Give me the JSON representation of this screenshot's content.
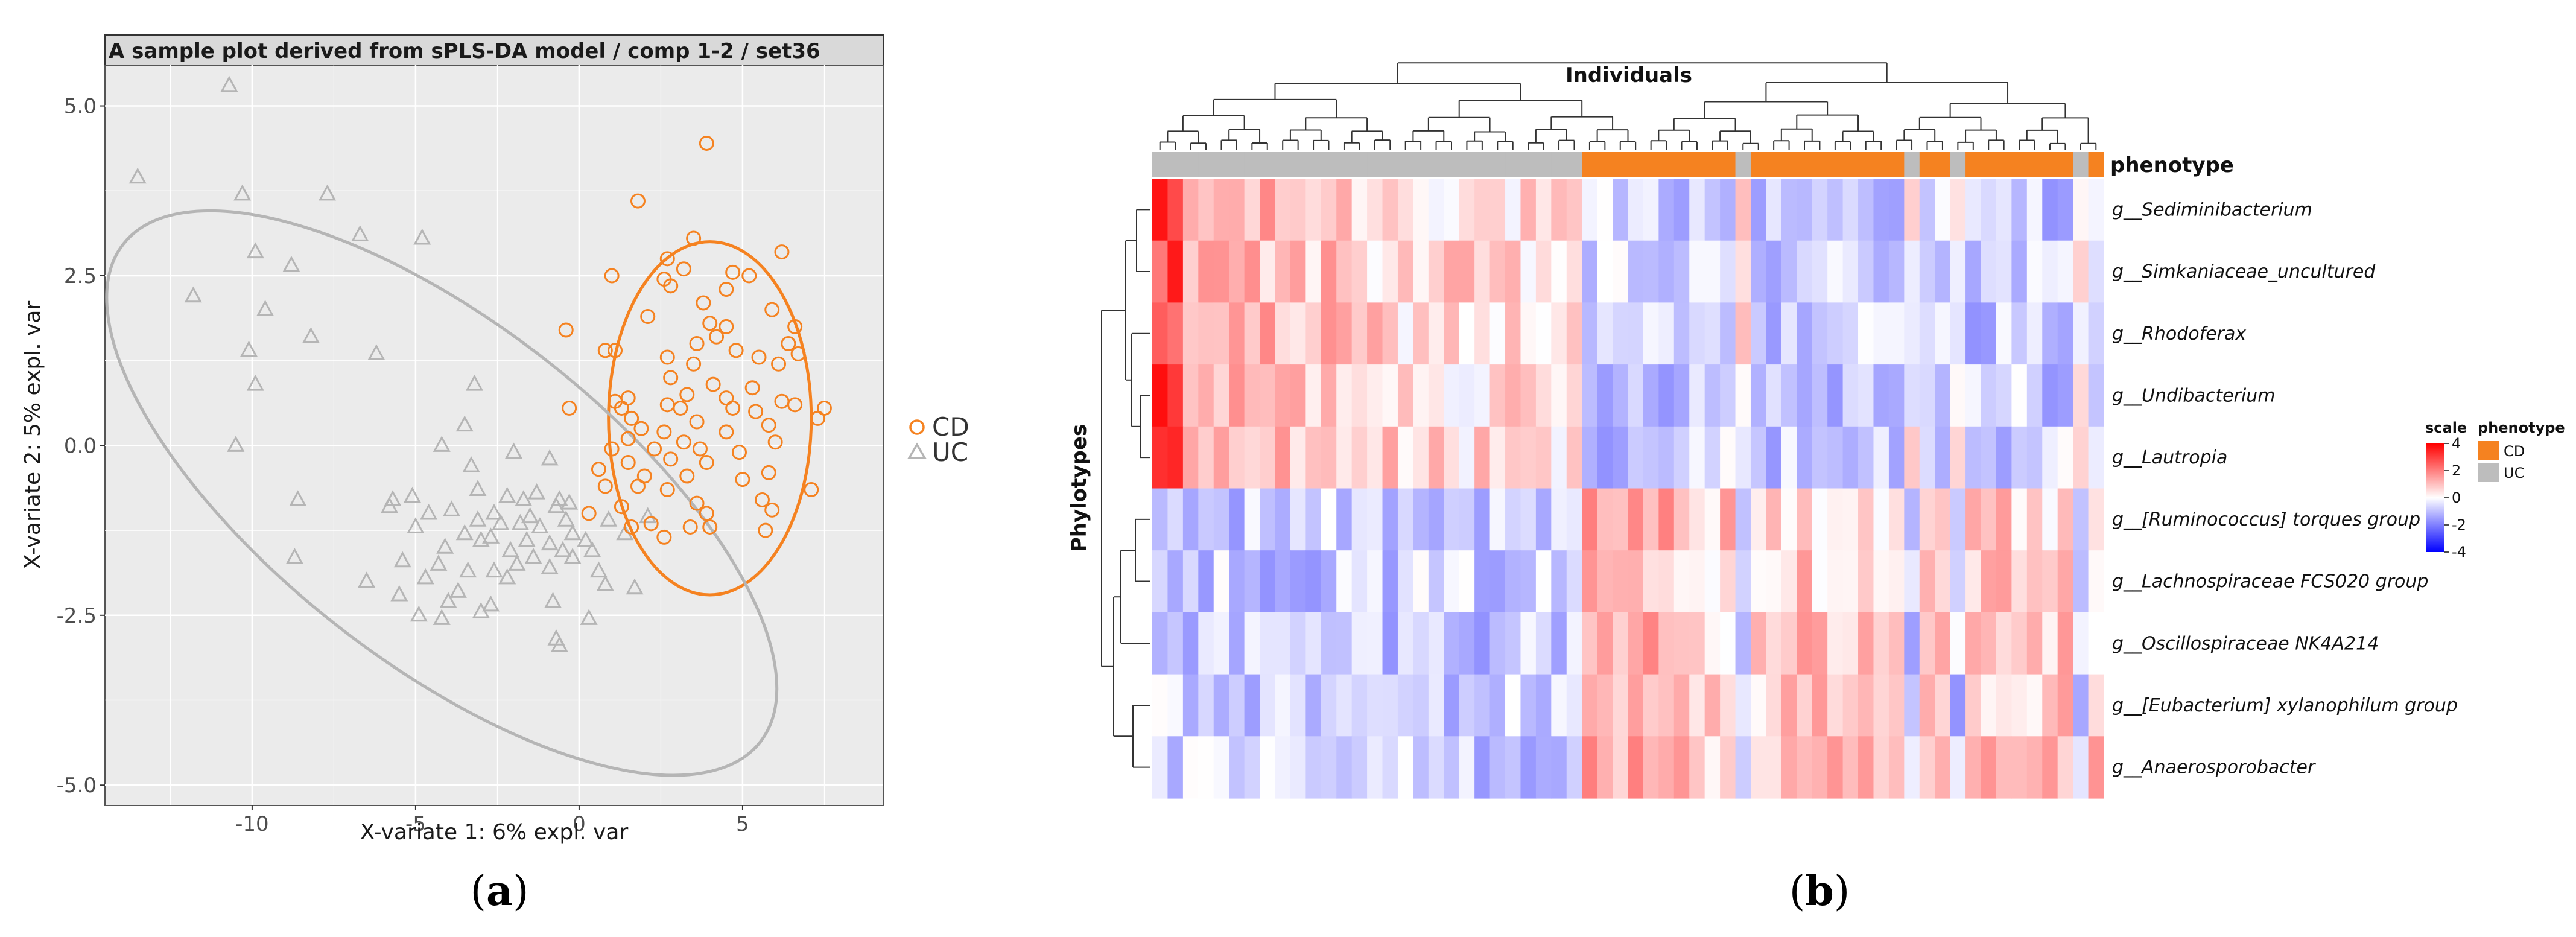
{
  "colors": {
    "cd": "#f58220",
    "uc": "#b5b5b5",
    "panel_bg": "#ebebeb",
    "grid": "#ffffff",
    "hm_low": "#0000ff",
    "hm_mid": "#ffffff",
    "hm_high": "#ff0000"
  },
  "captions": {
    "a_open": "(",
    "a_letter": "a",
    "a_close": ")",
    "b_open": "(",
    "b_letter": "b",
    "b_close": ")"
  },
  "chart_data": [
    {
      "type": "scatter",
      "title": "A sample plot derived from sPLS-DA model / comp 1-2 / set36",
      "xlabel": "X-variate 1: 6% expl. var",
      "ylabel": "X-variate 2: 5% expl. var",
      "xlim": [
        -14.5,
        9.3
      ],
      "ylim": [
        -5.3,
        5.6
      ],
      "xticks": [
        -10,
        -5,
        0,
        5
      ],
      "xtick_labels": [
        "-10",
        "-5",
        "0",
        "5"
      ],
      "yticks": [
        5,
        2.5,
        0,
        -2.5,
        -5
      ],
      "ytick_labels": [
        "5.0",
        "2.5",
        "0.0",
        "-2.5",
        "-5.0"
      ],
      "legend": {
        "position": "right",
        "items": [
          "CD",
          "UC"
        ]
      },
      "ellipses": [
        {
          "group": "CD",
          "center": [
            4.0,
            0.4
          ],
          "semi_axes": [
            3.1,
            2.6
          ],
          "rotation_deg": 0
        },
        {
          "group": "UC",
          "center": [
            -4.2,
            -0.7
          ],
          "semi_axes": [
            10.4,
            3.6
          ],
          "rotation_deg": -23
        }
      ],
      "series": [
        {
          "name": "CD",
          "marker": "circle",
          "points": [
            [
              3.9,
              4.45
            ],
            [
              1.8,
              3.6
            ],
            [
              3.5,
              3.05
            ],
            [
              6.2,
              2.85
            ],
            [
              2.7,
              2.75
            ],
            [
              3.2,
              2.6
            ],
            [
              4.7,
              2.55
            ],
            [
              5.2,
              2.5
            ],
            [
              1.0,
              2.5
            ],
            [
              2.6,
              2.45
            ],
            [
              2.8,
              2.35
            ],
            [
              4.5,
              2.3
            ],
            [
              3.8,
              2.1
            ],
            [
              5.9,
              2.0
            ],
            [
              2.1,
              1.9
            ],
            [
              4.0,
              1.8
            ],
            [
              4.5,
              1.75
            ],
            [
              -0.4,
              1.7
            ],
            [
              6.6,
              1.75
            ],
            [
              4.2,
              1.6
            ],
            [
              3.6,
              1.5
            ],
            [
              6.4,
              1.5
            ],
            [
              0.8,
              1.4
            ],
            [
              1.1,
              1.4
            ],
            [
              4.8,
              1.4
            ],
            [
              2.7,
              1.3
            ],
            [
              5.5,
              1.3
            ],
            [
              6.7,
              1.35
            ],
            [
              3.5,
              1.2
            ],
            [
              6.1,
              1.2
            ],
            [
              2.8,
              1.0
            ],
            [
              4.1,
              0.9
            ],
            [
              5.3,
              0.85
            ],
            [
              1.5,
              0.7
            ],
            [
              3.3,
              0.75
            ],
            [
              4.5,
              0.7
            ],
            [
              6.2,
              0.65
            ],
            [
              1.1,
              0.65
            ],
            [
              1.3,
              0.55
            ],
            [
              -0.3,
              0.55
            ],
            [
              2.7,
              0.6
            ],
            [
              3.1,
              0.55
            ],
            [
              4.7,
              0.55
            ],
            [
              5.4,
              0.5
            ],
            [
              6.6,
              0.6
            ],
            [
              7.5,
              0.55
            ],
            [
              7.3,
              0.4
            ],
            [
              1.6,
              0.4
            ],
            [
              3.6,
              0.35
            ],
            [
              1.9,
              0.25
            ],
            [
              2.6,
              0.2
            ],
            [
              4.5,
              0.2
            ],
            [
              5.8,
              0.3
            ],
            [
              1.5,
              0.1
            ],
            [
              3.2,
              0.05
            ],
            [
              6.0,
              0.05
            ],
            [
              1.0,
              -0.05
            ],
            [
              2.3,
              -0.05
            ],
            [
              3.7,
              -0.05
            ],
            [
              4.9,
              -0.1
            ],
            [
              1.5,
              -0.25
            ],
            [
              2.8,
              -0.2
            ],
            [
              3.9,
              -0.25
            ],
            [
              5.8,
              -0.4
            ],
            [
              0.6,
              -0.35
            ],
            [
              2.0,
              -0.45
            ],
            [
              3.3,
              -0.45
            ],
            [
              5.0,
              -0.5
            ],
            [
              7.1,
              -0.65
            ],
            [
              0.8,
              -0.6
            ],
            [
              1.8,
              -0.6
            ],
            [
              2.7,
              -0.65
            ],
            [
              3.6,
              -0.85
            ],
            [
              5.6,
              -0.8
            ],
            [
              1.3,
              -0.9
            ],
            [
              0.3,
              -1.0
            ],
            [
              3.9,
              -1.0
            ],
            [
              5.9,
              -0.95
            ],
            [
              2.2,
              -1.15
            ],
            [
              3.4,
              -1.2
            ],
            [
              1.6,
              -1.2
            ],
            [
              4.0,
              -1.2
            ],
            [
              5.7,
              -1.25
            ],
            [
              2.6,
              -1.35
            ]
          ]
        },
        {
          "name": "UC",
          "marker": "triangle",
          "points": [
            [
              -10.7,
              5.3
            ],
            [
              -13.5,
              3.95
            ],
            [
              -10.3,
              3.7
            ],
            [
              -7.7,
              3.7
            ],
            [
              -6.7,
              3.1
            ],
            [
              -4.8,
              3.05
            ],
            [
              -9.9,
              2.85
            ],
            [
              -8.8,
              2.65
            ],
            [
              -11.8,
              2.2
            ],
            [
              -9.6,
              2.0
            ],
            [
              -8.2,
              1.6
            ],
            [
              -10.1,
              1.4
            ],
            [
              -6.2,
              1.35
            ],
            [
              -9.9,
              0.9
            ],
            [
              -3.2,
              0.9
            ],
            [
              -3.5,
              0.3
            ],
            [
              -4.2,
              0.0
            ],
            [
              -10.5,
              0.0
            ],
            [
              -2.0,
              -0.1
            ],
            [
              -0.9,
              -0.2
            ],
            [
              -3.3,
              -0.3
            ],
            [
              -5.1,
              -0.75
            ],
            [
              -5.7,
              -0.8
            ],
            [
              -8.6,
              -0.8
            ],
            [
              -5.8,
              -0.9
            ],
            [
              -3.1,
              -0.65
            ],
            [
              -2.2,
              -0.75
            ],
            [
              -1.3,
              -0.7
            ],
            [
              -0.6,
              -0.8
            ],
            [
              -0.3,
              -0.85
            ],
            [
              -1.7,
              -0.8
            ],
            [
              -4.6,
              -1.0
            ],
            [
              -3.9,
              -0.95
            ],
            [
              -2.6,
              -1.0
            ],
            [
              -1.5,
              -1.05
            ],
            [
              -0.7,
              -0.9
            ],
            [
              -0.4,
              -1.1
            ],
            [
              -3.1,
              -1.1
            ],
            [
              -2.4,
              -1.15
            ],
            [
              -1.8,
              -1.15
            ],
            [
              -1.2,
              -1.2
            ],
            [
              -0.2,
              -1.3
            ],
            [
              0.2,
              -1.4
            ],
            [
              -5.0,
              -1.2
            ],
            [
              -3.5,
              -1.3
            ],
            [
              -2.7,
              -1.35
            ],
            [
              -1.6,
              -1.4
            ],
            [
              -0.9,
              -1.45
            ],
            [
              -0.5,
              -1.55
            ],
            [
              -4.1,
              -1.5
            ],
            [
              -3.0,
              -1.4
            ],
            [
              -2.1,
              -1.55
            ],
            [
              -1.4,
              -1.65
            ],
            [
              -0.2,
              -1.65
            ],
            [
              0.4,
              -1.55
            ],
            [
              -5.4,
              -1.7
            ],
            [
              -4.3,
              -1.75
            ],
            [
              -8.7,
              -1.65
            ],
            [
              -3.4,
              -1.85
            ],
            [
              -2.6,
              -1.85
            ],
            [
              -1.9,
              -1.75
            ],
            [
              -0.9,
              -1.8
            ],
            [
              0.6,
              -1.85
            ],
            [
              -6.5,
              -2.0
            ],
            [
              -4.7,
              -1.95
            ],
            [
              -3.7,
              -2.15
            ],
            [
              -2.2,
              -1.95
            ],
            [
              0.8,
              -2.05
            ],
            [
              -5.5,
              -2.2
            ],
            [
              -4.0,
              -2.3
            ],
            [
              -0.8,
              -2.3
            ],
            [
              -3.0,
              -2.45
            ],
            [
              -2.7,
              -2.35
            ],
            [
              -4.9,
              -2.5
            ],
            [
              -4.2,
              -2.55
            ],
            [
              0.3,
              -2.55
            ],
            [
              -0.7,
              -2.85
            ],
            [
              -0.6,
              -2.95
            ],
            [
              1.7,
              -2.1
            ],
            [
              2.1,
              -1.05
            ],
            [
              1.4,
              -1.3
            ],
            [
              0.9,
              -1.1
            ]
          ]
        }
      ]
    },
    {
      "type": "heatmap",
      "column_title": "Individuals",
      "row_title": "Phylotypes",
      "annotation_label": "phenotype",
      "rows": [
        "g__Sediminibacterium",
        "g__Simkaniaceae_uncultured",
        "g__Rhodoferax",
        "g__Undibacterium",
        "g__Lautropia",
        "g__[Ruminococcus] torques group",
        "g__Lachnospiraceae FCS020 group",
        "g__Oscillospiraceae NK4A214",
        "g__[Eubacterium] xylanophilum group",
        "g__Anaerosporobacter"
      ],
      "n_columns": 62,
      "column_phenotype": [
        "UC",
        "UC",
        "UC",
        "UC",
        "UC",
        "UC",
        "UC",
        "UC",
        "UC",
        "UC",
        "UC",
        "UC",
        "UC",
        "UC",
        "UC",
        "UC",
        "UC",
        "UC",
        "UC",
        "UC",
        "UC",
        "UC",
        "UC",
        "UC",
        "UC",
        "UC",
        "UC",
        "UC",
        "CD",
        "CD",
        "CD",
        "CD",
        "CD",
        "CD",
        "CD",
        "CD",
        "CD",
        "CD",
        "UC",
        "CD",
        "CD",
        "CD",
        "CD",
        "CD",
        "CD",
        "CD",
        "CD",
        "CD",
        "CD",
        "UC",
        "CD",
        "CD",
        "UC",
        "CD",
        "CD",
        "CD",
        "CD",
        "CD",
        "CD",
        "CD",
        "UC",
        "CD"
      ],
      "scale": {
        "title": "scale",
        "min": -4,
        "max": 4,
        "ticks": [
          4,
          2,
          0,
          -2,
          -4
        ],
        "tick_labels": [
          "4",
          "2",
          "0",
          "-2",
          "-4"
        ]
      },
      "phenotype_legend": {
        "title": "phenotype",
        "items": [
          "CD",
          "UC"
        ]
      }
    }
  ]
}
